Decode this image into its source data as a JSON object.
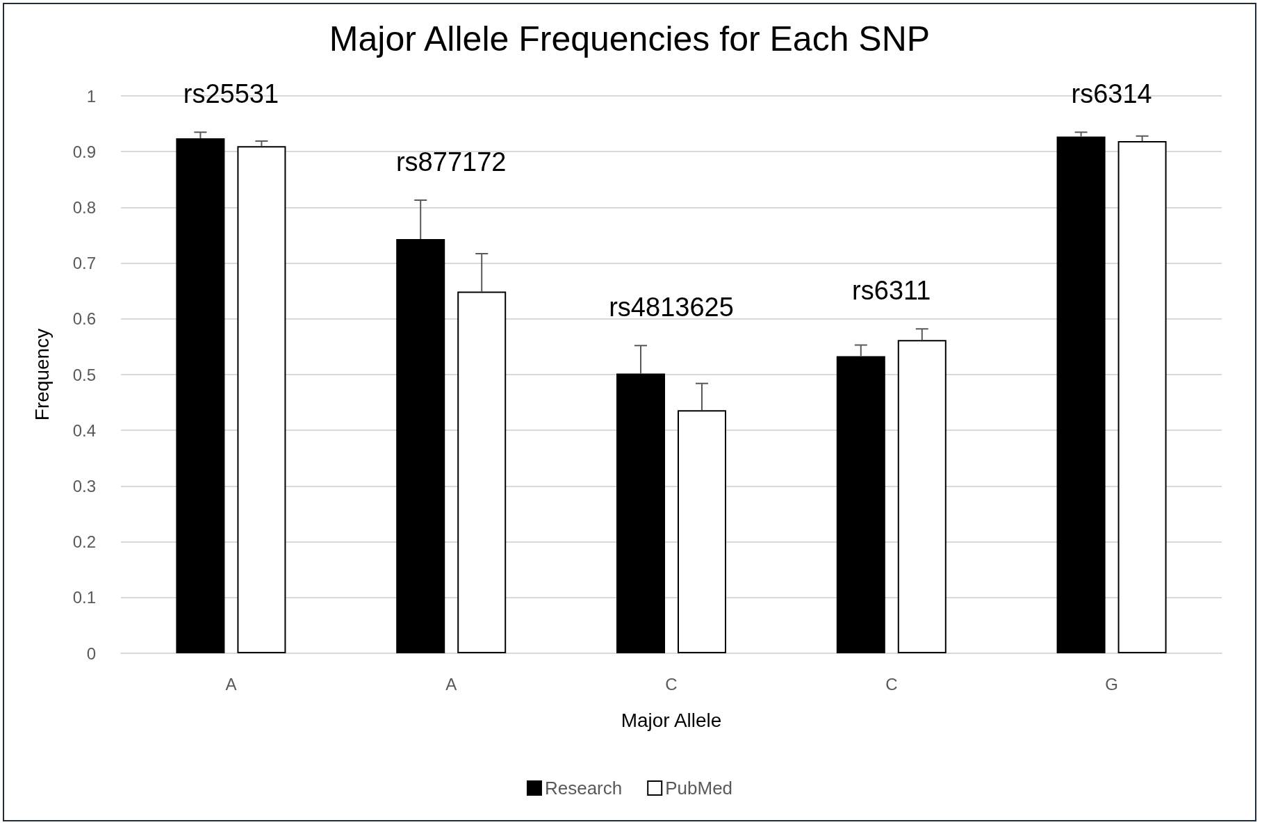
{
  "chart_data": {
    "type": "bar",
    "title": "Major Allele Frequencies for Each SNP",
    "xlabel": "Major Allele",
    "ylabel": "Frequency",
    "categories": [
      "A",
      "A",
      "C",
      "C",
      "G"
    ],
    "series": [
      {
        "name": "Research",
        "color": "#000000",
        "values": [
          0.924,
          0.743,
          0.502,
          0.533,
          0.927
        ],
        "errors": [
          [
            0.924,
            0.935
          ],
          [
            0.743,
            0.813
          ],
          [
            0.502,
            0.552
          ],
          [
            0.533,
            0.553
          ],
          [
            0.927,
            0.935
          ]
        ]
      },
      {
        "name": "PubMed",
        "color": "#ffffff",
        "values": [
          0.91,
          0.649,
          0.436,
          0.562,
          0.919
        ],
        "errors": [
          [
            0.91,
            0.919
          ],
          [
            0.649,
            0.717
          ],
          [
            0.436,
            0.484
          ],
          [
            0.562,
            0.582
          ],
          [
            0.919,
            0.928
          ]
        ]
      }
    ],
    "annotations": [
      "rs25531",
      "rs877172",
      "rs4813625",
      "rs6311",
      "rs6314"
    ],
    "ylim": [
      0,
      1
    ],
    "yticks": [
      0,
      0.1,
      0.2,
      0.3,
      0.4,
      0.5,
      0.6,
      0.7,
      0.8,
      0.9,
      1
    ],
    "grid": "y",
    "legend": "bottom"
  }
}
